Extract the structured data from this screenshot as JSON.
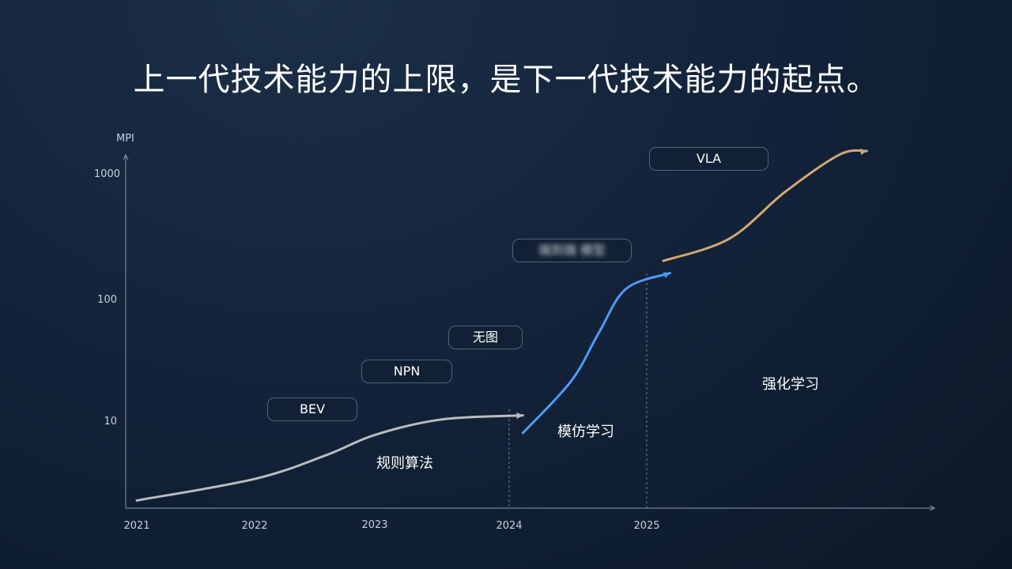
{
  "title": "上一代技术能力的上限，是下一代技术能力的起点。",
  "chart_data": {
    "type": "line",
    "y_unit_label": "MPI",
    "y_scale": "log",
    "y_ticks": [
      "1000",
      "100",
      "10"
    ],
    "x_ticks": [
      "2021",
      "2022",
      "2023",
      "2024",
      "2025"
    ],
    "series": [
      {
        "color": "#b9bcc2",
        "points": [
          [
            2021.0,
            2.2
          ],
          [
            2022.0,
            3.3
          ],
          [
            2022.6,
            5.2
          ],
          [
            2023.0,
            7.6
          ],
          [
            2023.5,
            10.2
          ],
          [
            2024.1,
            11.0
          ]
        ]
      },
      {
        "color": "#4f9bf2",
        "points": [
          [
            2024.1,
            7.9
          ],
          [
            2024.45,
            21
          ],
          [
            2024.65,
            52
          ],
          [
            2024.85,
            120
          ],
          [
            2025.17,
            160
          ]
        ]
      },
      {
        "color": "#d3a872",
        "points": [
          [
            2025.12,
            200
          ],
          [
            2025.6,
            300
          ],
          [
            2026.0,
            700
          ],
          [
            2026.4,
            1400
          ],
          [
            2026.6,
            1500
          ]
        ]
      }
    ],
    "vertical_markers": [
      2024,
      2025
    ]
  },
  "tags": {
    "bev": "BEV",
    "npn": "NPN",
    "wutu": "无图",
    "hidden": "端到端 模型",
    "vla": "VLA"
  },
  "phases": {
    "rules": "规则算法",
    "imitation": "模仿学习",
    "rl": "强化学习"
  }
}
